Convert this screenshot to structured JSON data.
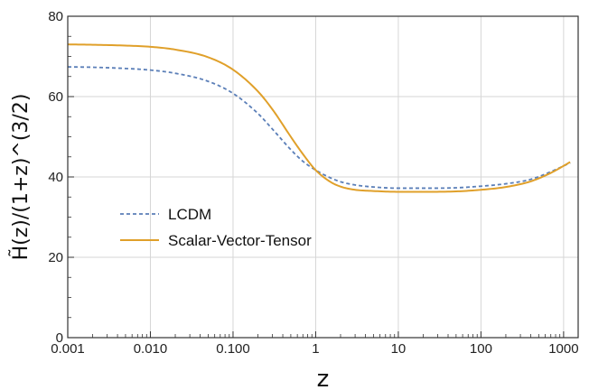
{
  "chart_data": {
    "type": "line",
    "xlabel": "z",
    "ylabel": "H̃(z)/(1+z)^(3/2)",
    "xscale": "log",
    "xlim": [
      0.001,
      1500
    ],
    "ylim": [
      0,
      80
    ],
    "x_ticks": [
      {
        "value": 0.001,
        "label": "0.001"
      },
      {
        "value": 0.01,
        "label": "0.010"
      },
      {
        "value": 0.1,
        "label": "0.100"
      },
      {
        "value": 1,
        "label": "1"
      },
      {
        "value": 10,
        "label": "10"
      },
      {
        "value": 100,
        "label": "100"
      },
      {
        "value": 1000,
        "label": "1000"
      }
    ],
    "y_ticks": [
      {
        "value": 0,
        "label": "0"
      },
      {
        "value": 20,
        "label": "20"
      },
      {
        "value": 40,
        "label": "40"
      },
      {
        "value": 60,
        "label": "60"
      },
      {
        "value": 80,
        "label": "80"
      }
    ],
    "grid": true,
    "legend_position": "center-left",
    "series": [
      {
        "name": "LCDM",
        "color": "#5b7fb8",
        "style": "dashed",
        "points": [
          [
            0.001,
            67.4
          ],
          [
            0.002,
            67.3
          ],
          [
            0.005,
            67.0
          ],
          [
            0.01,
            66.6
          ],
          [
            0.02,
            65.8
          ],
          [
            0.05,
            63.8
          ],
          [
            0.1,
            60.8
          ],
          [
            0.2,
            55.8
          ],
          [
            0.3,
            51.9
          ],
          [
            0.5,
            46.8
          ],
          [
            0.7,
            43.9
          ],
          [
            1.0,
            41.7
          ],
          [
            1.5,
            39.8
          ],
          [
            2.0,
            38.8
          ],
          [
            3.0,
            38.0
          ],
          [
            5.0,
            37.5
          ],
          [
            10,
            37.2
          ],
          [
            20,
            37.2
          ],
          [
            50,
            37.3
          ],
          [
            100,
            37.7
          ],
          [
            200,
            38.3
          ],
          [
            400,
            39.4
          ],
          [
            700,
            41.3
          ],
          [
            1200,
            43.5
          ]
        ]
      },
      {
        "name": "Scalar-Vector-Tensor",
        "color": "#e0a02a",
        "style": "solid",
        "points": [
          [
            0.001,
            73.0
          ],
          [
            0.002,
            72.9
          ],
          [
            0.005,
            72.7
          ],
          [
            0.01,
            72.4
          ],
          [
            0.02,
            71.7
          ],
          [
            0.05,
            69.8
          ],
          [
            0.1,
            66.7
          ],
          [
            0.2,
            61.3
          ],
          [
            0.3,
            56.8
          ],
          [
            0.5,
            50.0
          ],
          [
            0.7,
            45.7
          ],
          [
            1.0,
            41.7
          ],
          [
            1.5,
            38.8
          ],
          [
            2.0,
            37.6
          ],
          [
            3.0,
            36.8
          ],
          [
            5.0,
            36.5
          ],
          [
            10,
            36.3
          ],
          [
            20,
            36.3
          ],
          [
            50,
            36.4
          ],
          [
            100,
            36.8
          ],
          [
            200,
            37.5
          ],
          [
            400,
            38.9
          ],
          [
            700,
            41.0
          ],
          [
            1200,
            43.7
          ]
        ]
      }
    ]
  }
}
